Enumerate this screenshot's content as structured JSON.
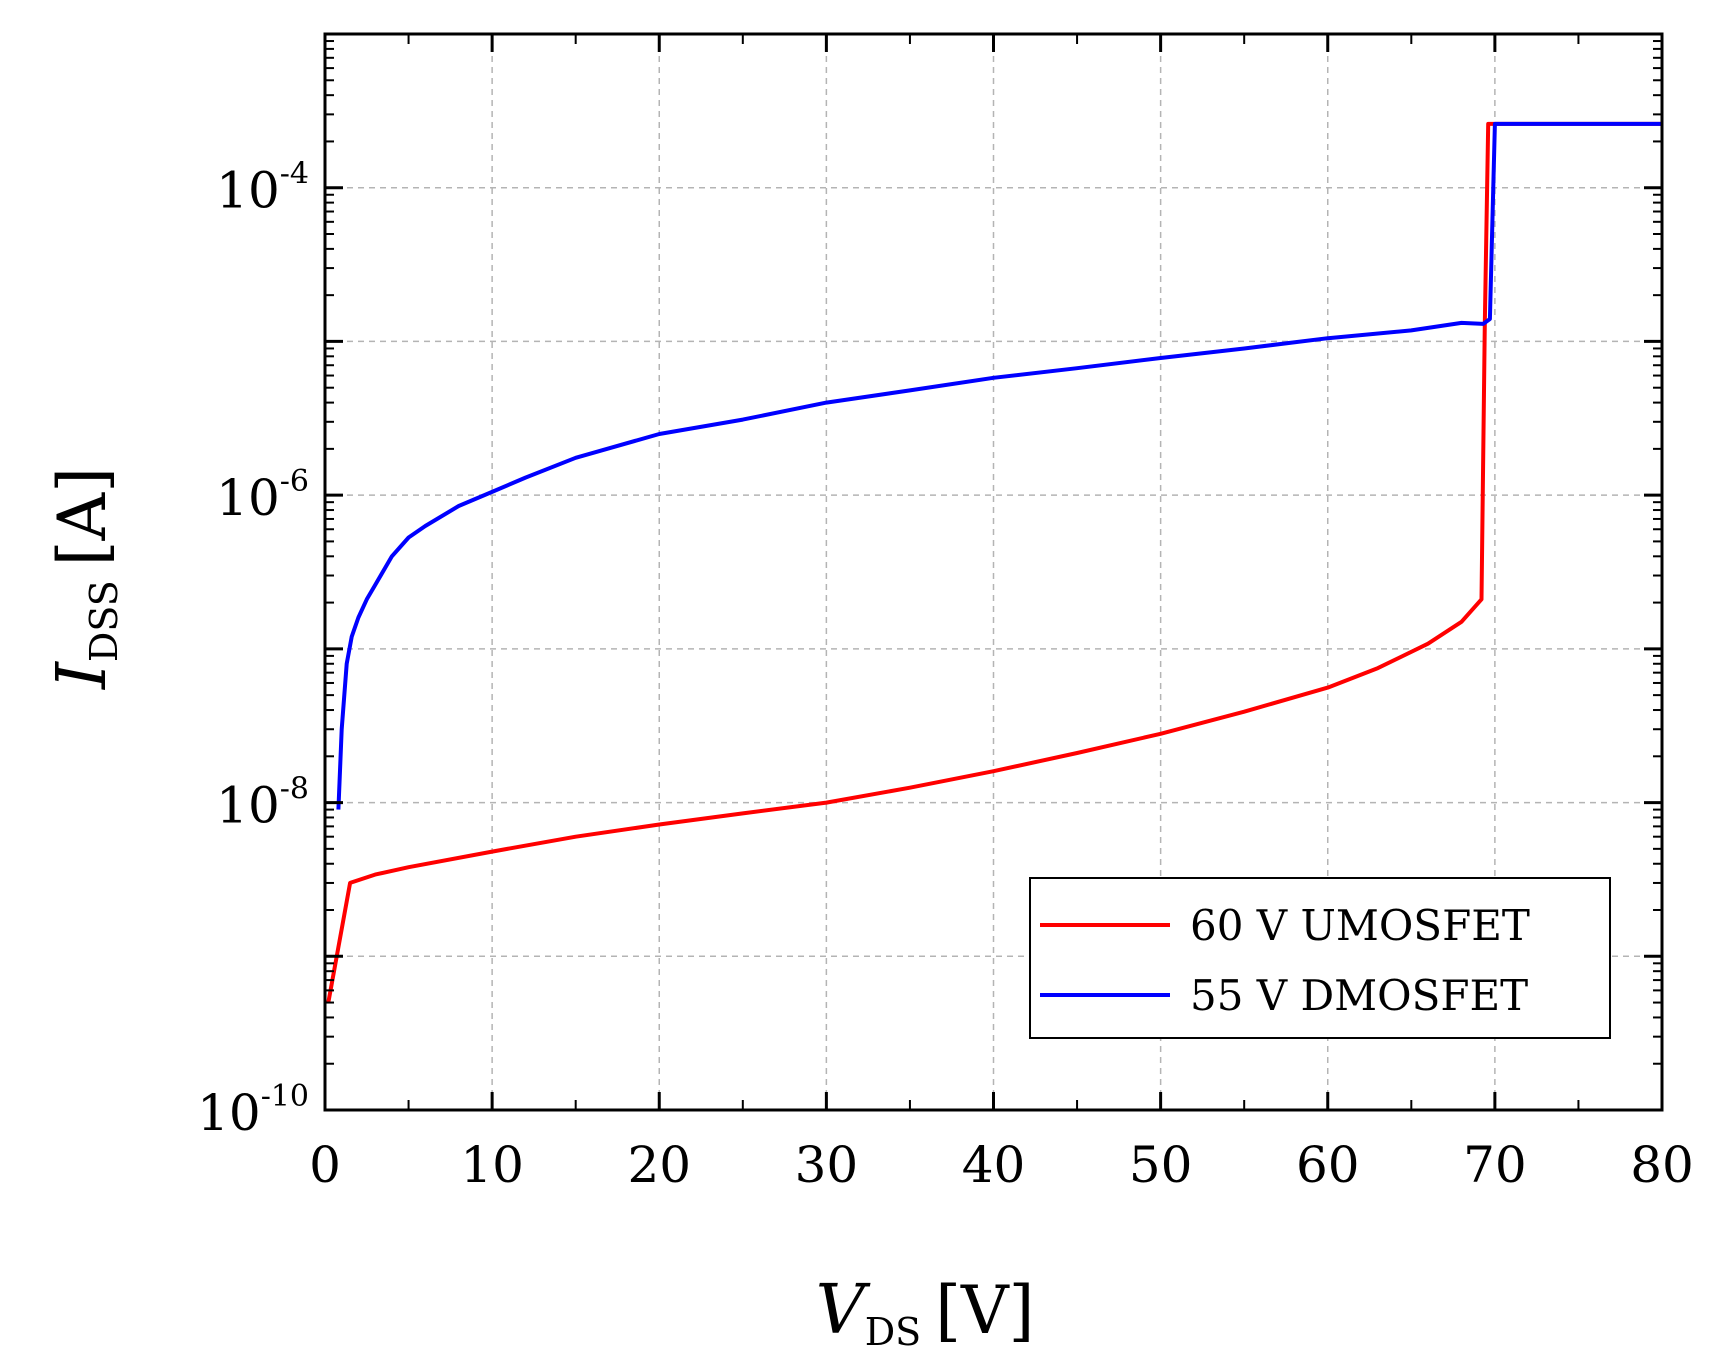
{
  "chart_data": {
    "type": "line",
    "xlabel": {
      "symbol": "V",
      "subscript": "DS",
      "unit": "[V]"
    },
    "ylabel": {
      "symbol": "I",
      "subscript": "DSS",
      "unit": "[A]"
    },
    "xlim": [
      0,
      80
    ],
    "ylim": [
      1e-10,
      0.001
    ],
    "yscale": "log",
    "grid": true,
    "legend_position": "bottom-right",
    "x_ticks": [
      "0",
      "10",
      "20",
      "30",
      "40",
      "50",
      "60",
      "70",
      "80"
    ],
    "y_ticks": [
      {
        "base": "10",
        "exp": "-10"
      },
      {
        "base": "10",
        "exp": "-8"
      },
      {
        "base": "10",
        "exp": "-6"
      },
      {
        "base": "10",
        "exp": "-4"
      }
    ],
    "series": [
      {
        "name": "60 V UMOSFET",
        "color": "#ff0000",
        "x": [
          0.2,
          1.5,
          3,
          5,
          10,
          15,
          20,
          25,
          30,
          35,
          40,
          45,
          50,
          55,
          60,
          63,
          66,
          68,
          69.2,
          69.4,
          69.6,
          80
        ],
        "y": [
          5e-10,
          3e-09,
          3.4e-09,
          3.8e-09,
          4.8e-09,
          6e-09,
          7.2e-09,
          8.5e-09,
          1e-08,
          1.25e-08,
          1.6e-08,
          2.1e-08,
          2.8e-08,
          3.9e-08,
          5.6e-08,
          7.5e-08,
          1.08e-07,
          1.5e-07,
          2.1e-07,
          1.3e-05,
          0.00026,
          0.00026
        ]
      },
      {
        "name": "55 V DMOSFET",
        "color": "#0000ff",
        "x": [
          0.8,
          1,
          1.3,
          1.6,
          2,
          2.5,
          3,
          4,
          5,
          6,
          8,
          10,
          12,
          15,
          20,
          25,
          30,
          35,
          40,
          45,
          50,
          55,
          60,
          65,
          68,
          69.3,
          69.7,
          70,
          80
        ],
        "y": [
          9e-09,
          3e-08,
          8e-08,
          1.2e-07,
          1.6e-07,
          2.1e-07,
          2.6e-07,
          4e-07,
          5.3e-07,
          6.3e-07,
          8.5e-07,
          1.05e-06,
          1.3e-06,
          1.75e-06,
          2.5e-06,
          3.1e-06,
          4e-06,
          4.8e-06,
          5.8e-06,
          6.7e-06,
          7.8e-06,
          9e-06,
          1.05e-05,
          1.18e-05,
          1.32e-05,
          1.3e-05,
          1.4e-05,
          0.00026,
          0.00026
        ]
      }
    ]
  }
}
